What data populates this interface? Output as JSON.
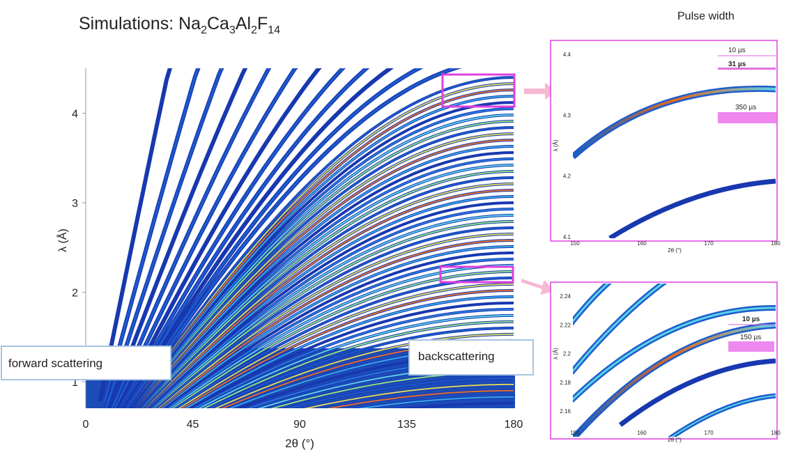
{
  "title": {
    "prefix": "Simulations:",
    "formula": [
      {
        "element": "Na",
        "count": "2"
      },
      {
        "element": "Ca",
        "count": "3"
      },
      {
        "element": "Al",
        "count": "2"
      },
      {
        "element": "F",
        "count": "14"
      }
    ]
  },
  "pulse_width_title": "Pulse width",
  "main_plot": {
    "y_axis_label": "λ (Å)",
    "x_axis_label": "2θ (°)",
    "yticks": [
      "1",
      "2",
      "3",
      "4"
    ],
    "xticks": [
      "0",
      "45",
      "90",
      "135",
      "180"
    ]
  },
  "inset_top": {
    "y_axis_label": "λ (Å)",
    "x_axis_label": "2θ (°)",
    "yticks": [
      "4.4",
      "4.3",
      "4.2",
      "4.1"
    ],
    "xticks": [
      "150",
      "160",
      "170",
      "180"
    ],
    "pulse_labels": [
      "10 µs",
      "31 µs",
      "350 µs"
    ]
  },
  "inset_bottom": {
    "y_axis_label": "λ (Å)",
    "x_axis_label": "2θ (°)",
    "yticks": [
      "2.24",
      "2.22",
      "2.2",
      "2.18",
      "2.16"
    ],
    "xticks": [
      "150",
      "160",
      "170",
      "180"
    ],
    "pulse_labels": [
      "10 µs",
      "150 µs"
    ]
  },
  "annotations": {
    "forward": "forward scattering",
    "backward": "backscattering"
  }
}
